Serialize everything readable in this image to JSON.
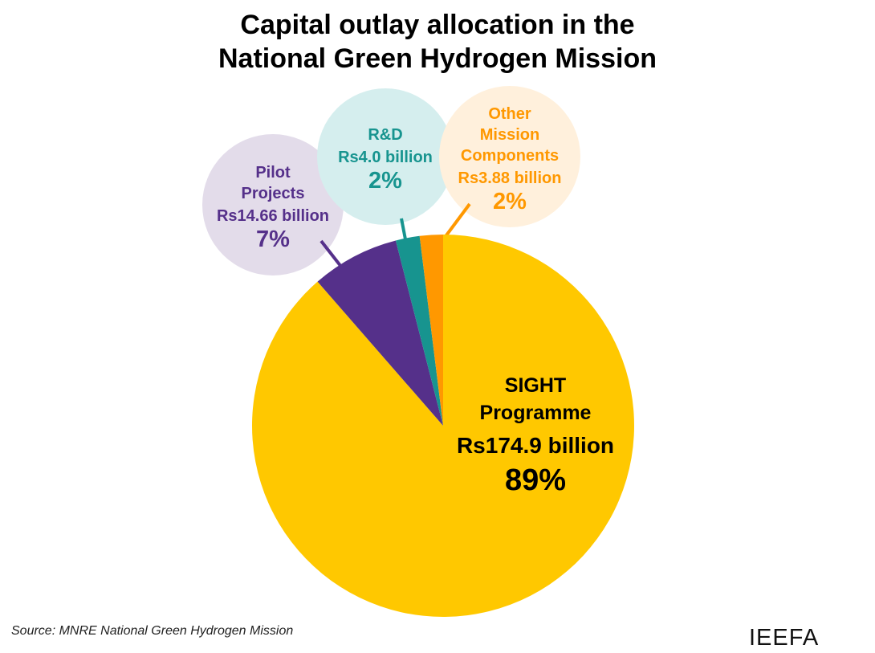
{
  "chart_data": {
    "type": "pie",
    "title_lines": [
      "Capital outlay allocation in the",
      "National Green Hydrogen Mission"
    ],
    "unit": "Rs billion",
    "slices": [
      {
        "name_lines": [
          "SIGHT",
          "Programme"
        ],
        "value": 174.9,
        "value_label": "Rs174.9 billion",
        "percent_label": "89%",
        "color": "#FFC800",
        "text_color": "#000000"
      },
      {
        "name_lines": [
          "Pilot",
          "Projects"
        ],
        "value": 14.66,
        "value_label": "Rs14.66 billion",
        "percent_label": "7%",
        "color": "#55308A",
        "text_color": "#55308A",
        "bubble_color": "#E3DCEA"
      },
      {
        "name_lines": [
          "R&D"
        ],
        "value": 4.0,
        "value_label": "Rs4.0 billion",
        "percent_label": "2%",
        "color": "#17948F",
        "text_color": "#17948F",
        "bubble_color": "#D5EEEE"
      },
      {
        "name_lines": [
          "Other",
          "Mission",
          "Components"
        ],
        "value": 3.88,
        "value_label": "Rs3.88 billion",
        "percent_label": "2%",
        "color": "#FF9800",
        "text_color": "#FF9800",
        "bubble_color": "#FFF0DC"
      }
    ],
    "start_angle": "top, clockwise",
    "legend": "none"
  },
  "footer": {
    "source": "Source: MNRE National Green Hydrogen Mission",
    "logo": "IEEFA"
  }
}
